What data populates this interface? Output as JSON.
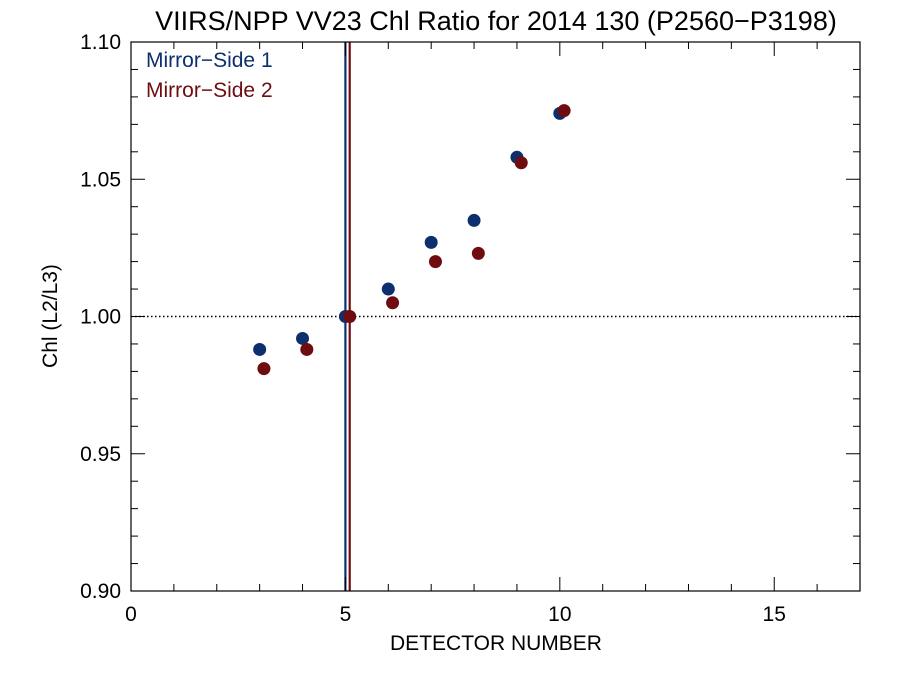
{
  "chart_data": {
    "type": "scatter",
    "title": "VIIRS/NPP VV23 Chl Ratio for 2014 130 (P2560−P3198)",
    "xlabel": "DETECTOR NUMBER",
    "ylabel": "Chl (L2/L3)",
    "xlim": [
      0,
      17
    ],
    "ylim": [
      0.9,
      1.1
    ],
    "x_ticks": [
      0,
      5,
      10,
      15
    ],
    "y_ticks": [
      0.9,
      0.95,
      1.0,
      1.05,
      1.1
    ],
    "x_tick_labels": [
      "0",
      "5",
      "10",
      "15"
    ],
    "y_tick_labels": [
      "0.90",
      "0.95",
      "1.00",
      "1.05",
      "1.10"
    ],
    "reference_line_y": 1.0,
    "legend_position": "top-left",
    "series": [
      {
        "name": "Mirror−Side 1",
        "color": "#0d2f6e",
        "x": [
          3,
          4,
          5,
          6,
          7,
          8,
          9,
          10
        ],
        "y": [
          0.988,
          0.992,
          1.0,
          1.01,
          1.027,
          1.035,
          1.058,
          1.074
        ],
        "vline_x": 5
      },
      {
        "name": "Mirror−Side 2",
        "color": "#6e0c10",
        "x": [
          3.1,
          4.1,
          5.1,
          6.1,
          7.1,
          8.1,
          9.1,
          10.1
        ],
        "y": [
          0.981,
          0.988,
          1.0,
          1.005,
          1.02,
          1.023,
          1.056,
          1.075
        ],
        "vline_x": 5.1
      }
    ]
  }
}
